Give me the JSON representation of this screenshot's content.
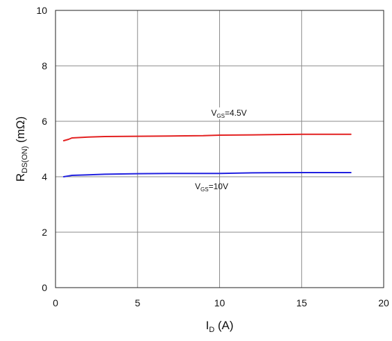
{
  "chart_data": {
    "type": "line",
    "xlabel": {
      "main": "I",
      "sub": "D",
      "unit": " (A)"
    },
    "ylabel": {
      "main": "R",
      "sub": "DS(ON)",
      "unit": " (mΩ)"
    },
    "xlim": [
      0,
      20
    ],
    "ylim": [
      0,
      10
    ],
    "x_ticks": [
      "0",
      "5",
      "10",
      "15",
      "20"
    ],
    "y_ticks": [
      "0",
      "2",
      "4",
      "6",
      "8",
      "10"
    ],
    "grid": true,
    "series": [
      {
        "name": "V_GS=4.5V",
        "label": {
          "main": "V",
          "sub": "GS",
          "rest": "=4.5V"
        },
        "color": "#e32020",
        "x": [
          0.5,
          0.8,
          1.0,
          2.0,
          3.0,
          5.0,
          7.0,
          9.0,
          10.0,
          12.0,
          15.0,
          18.0
        ],
        "y": [
          5.3,
          5.35,
          5.4,
          5.43,
          5.45,
          5.46,
          5.47,
          5.48,
          5.5,
          5.51,
          5.53,
          5.53
        ]
      },
      {
        "name": "V_GS=10V",
        "label": {
          "main": "V",
          "sub": "GS",
          "rest": "=10V"
        },
        "color": "#2020e0",
        "x": [
          0.5,
          0.8,
          1.0,
          2.0,
          3.0,
          5.0,
          7.0,
          9.0,
          10.0,
          12.0,
          15.0,
          18.0
        ],
        "y": [
          4.0,
          4.03,
          4.05,
          4.07,
          4.09,
          4.11,
          4.12,
          4.12,
          4.12,
          4.14,
          4.15,
          4.15
        ]
      }
    ]
  }
}
